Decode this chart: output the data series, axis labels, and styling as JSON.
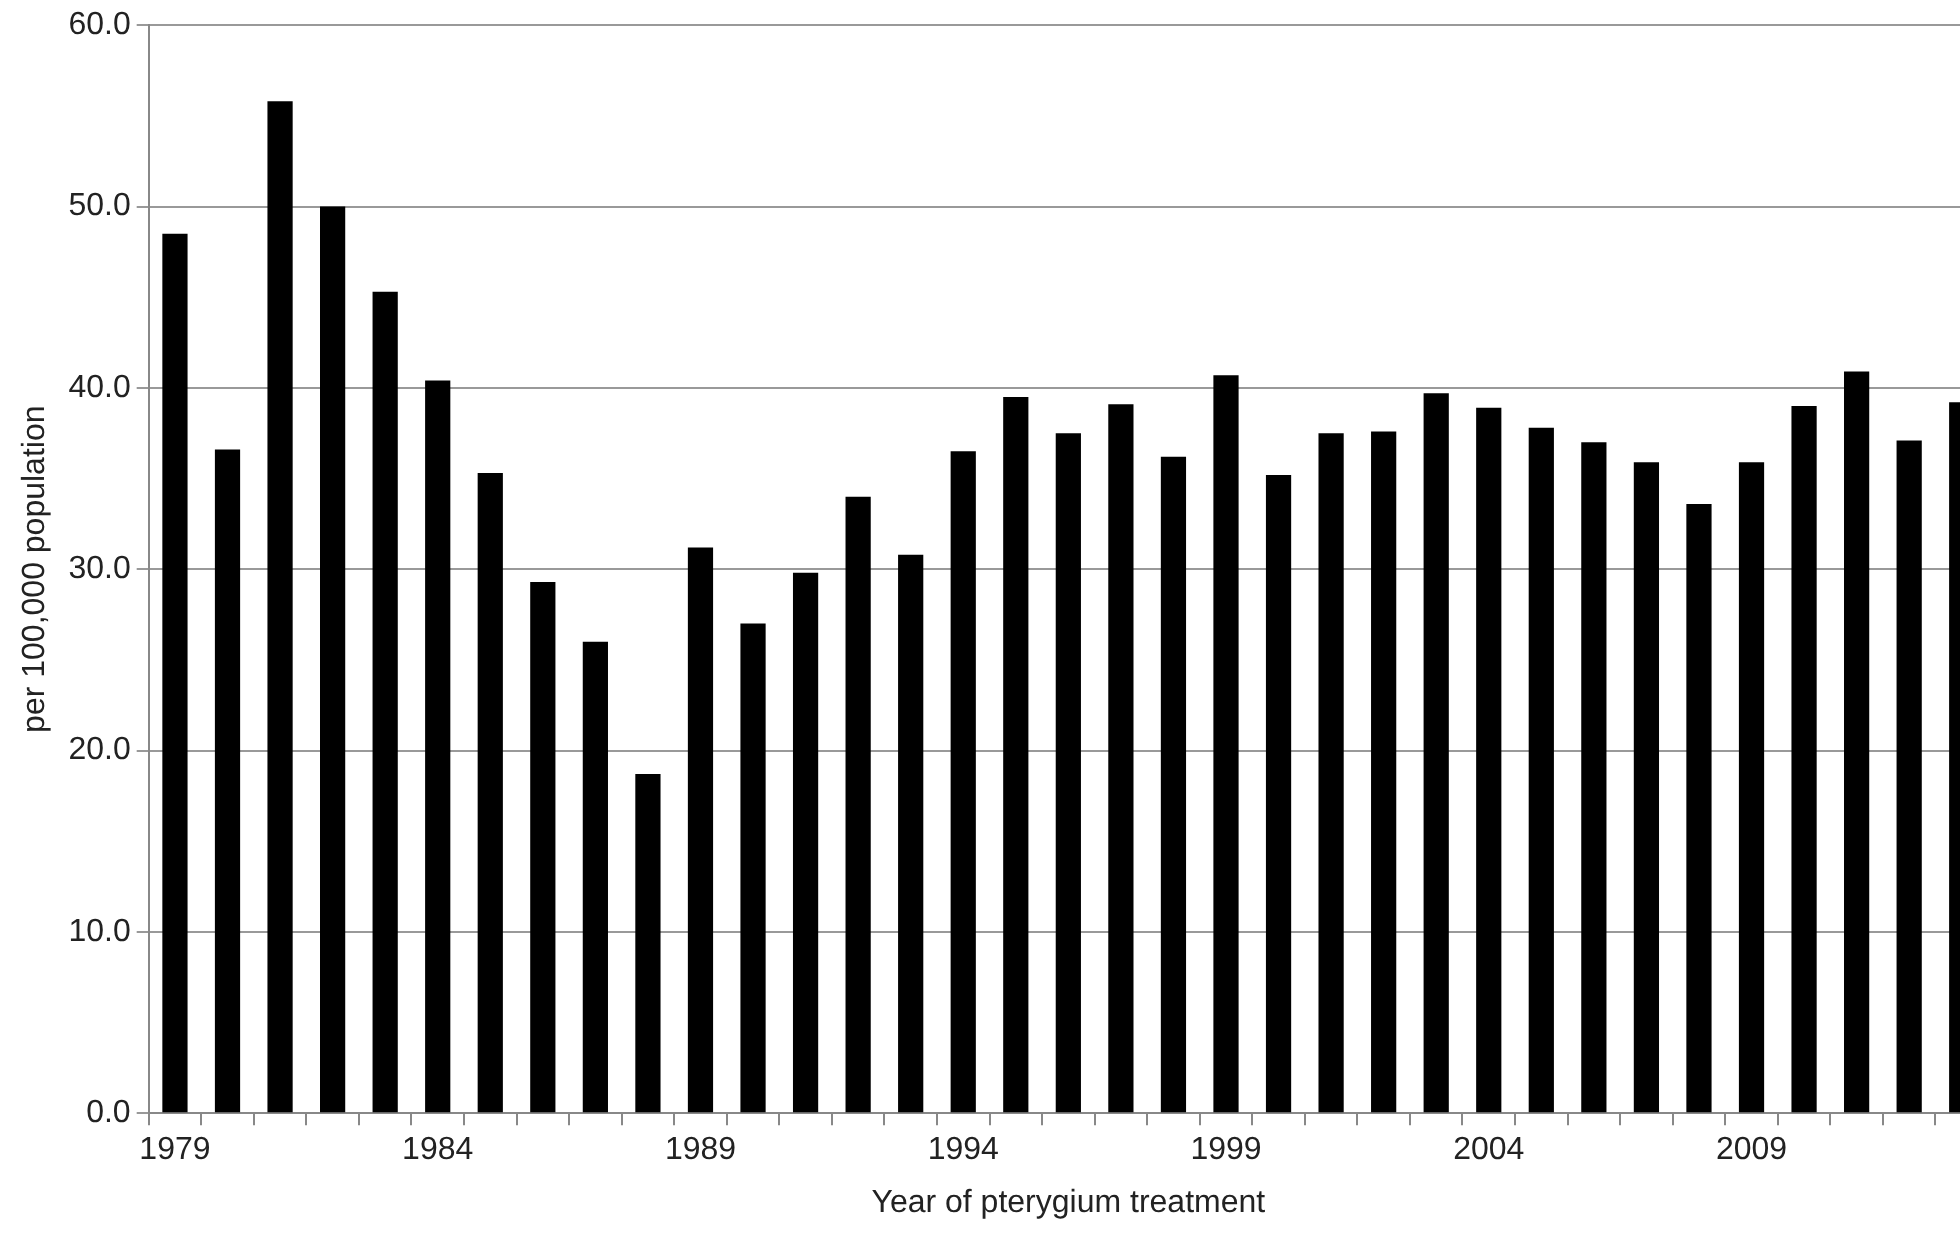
{
  "chart_data": {
    "type": "bar",
    "xlabel": "Year of pterygium treatment",
    "ylabel": "per 100,000 population",
    "categories": [
      "1979",
      null,
      null,
      null,
      null,
      "1984",
      null,
      null,
      null,
      null,
      "1989",
      null,
      null,
      null,
      null,
      "1994",
      null,
      null,
      null,
      null,
      "1999",
      null,
      null,
      null,
      null,
      "2004",
      null,
      null,
      null,
      null,
      "2009",
      null,
      null,
      null,
      null
    ],
    "values": [
      48.5,
      36.6,
      55.8,
      50.0,
      45.3,
      40.4,
      35.3,
      29.3,
      26.0,
      18.7,
      31.2,
      27.0,
      29.8,
      34.0,
      30.8,
      36.5,
      39.5,
      37.5,
      39.1,
      36.2,
      40.7,
      35.2,
      37.5,
      37.6,
      39.7,
      38.9,
      37.8,
      37.0,
      35.9,
      33.6,
      35.9,
      39.0,
      40.9,
      37.1,
      39.2
    ],
    "color": "#000000",
    "ylim": [
      0,
      60
    ],
    "yticks": [
      {
        "value": 0,
        "label": "0.0"
      },
      {
        "value": 10,
        "label": "10.0"
      },
      {
        "value": 20,
        "label": "20.0"
      },
      {
        "value": 30,
        "label": "30.0"
      },
      {
        "value": 40,
        "label": "40.0"
      },
      {
        "value": 50,
        "label": "50.0"
      },
      {
        "value": 60,
        "label": "60.0"
      }
    ],
    "grid": "y",
    "legend": false
  }
}
